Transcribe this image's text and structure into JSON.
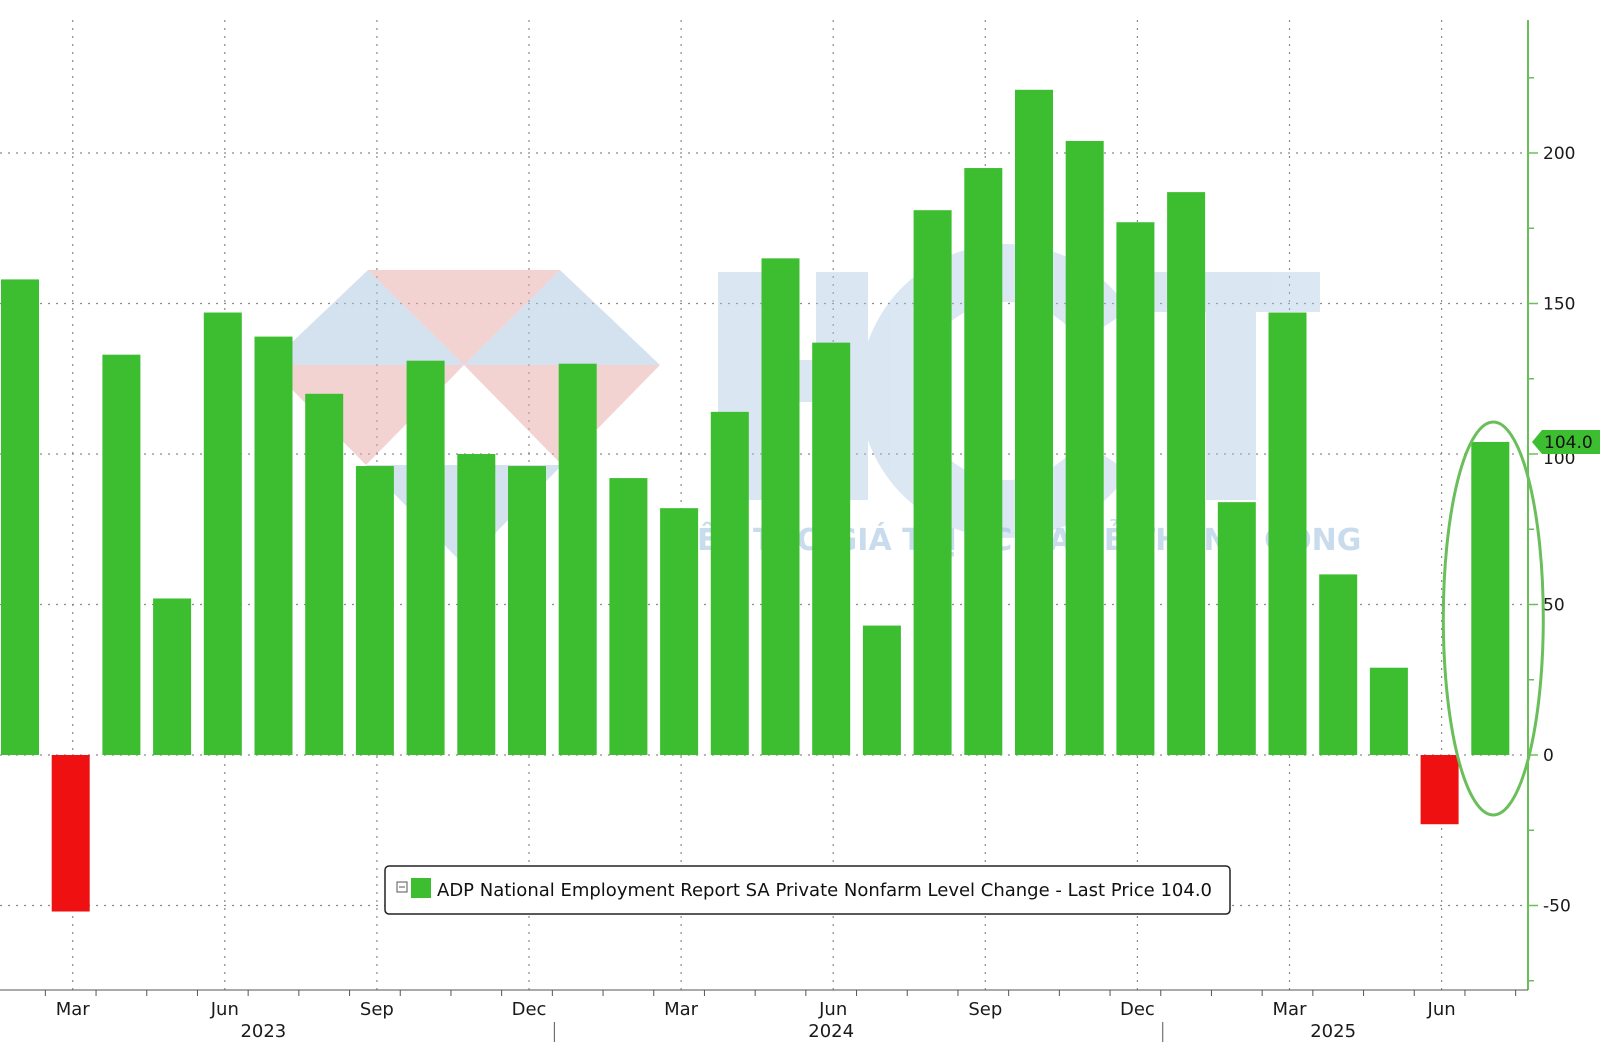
{
  "chart_data": {
    "type": "bar",
    "title": "",
    "xlabel": "",
    "ylabel": "",
    "ylim": [
      -80,
      245
    ],
    "y_ticks": [
      -50,
      0,
      50,
      100,
      150,
      200
    ],
    "series": [
      {
        "name": "ADP National Employment Report SA Private Nonfarm Level Change - Last Price 104.0",
        "periods": [
          "2023-02",
          "2023-03",
          "2023-04",
          "2023-05",
          "2023-06",
          "2023-07",
          "2023-08",
          "2023-09",
          "2023-10",
          "2023-11",
          "2023-12",
          "2024-01",
          "2024-02",
          "2024-03",
          "2024-04",
          "2024-05",
          "2024-06",
          "2024-07",
          "2024-08",
          "2024-09",
          "2024-10",
          "2024-11",
          "2024-12",
          "2025-01",
          "2025-02",
          "2025-03",
          "2025-04",
          "2025-05",
          "2025-06",
          "2025-07"
        ],
        "values": [
          158,
          -52,
          133,
          52,
          147,
          139,
          120,
          96,
          131,
          100,
          96,
          130,
          92,
          82,
          114,
          165,
          137,
          43,
          181,
          195,
          221,
          204,
          177,
          187,
          84,
          147,
          60,
          29,
          -23,
          104
        ]
      }
    ],
    "x_month_labels": [
      {
        "label": "Mar",
        "index": 1
      },
      {
        "label": "Jun",
        "index": 4
      },
      {
        "label": "Sep",
        "index": 7
      },
      {
        "label": "Dec",
        "index": 10
      },
      {
        "label": "Mar",
        "index": 13
      },
      {
        "label": "Jun",
        "index": 16
      },
      {
        "label": "Sep",
        "index": 19
      },
      {
        "label": "Dec",
        "index": 22
      },
      {
        "label": "Mar",
        "index": 25
      },
      {
        "label": "Jun",
        "index": 28
      }
    ],
    "x_year_labels": [
      {
        "label": "2023",
        "center_index": 4.8
      },
      {
        "label": "2024",
        "center_index": 16
      },
      {
        "label": "2025",
        "center_index": 25.9
      }
    ],
    "year_dividers": [
      10.5,
      22.5
    ],
    "last_price_label": "104.0",
    "legend_text": "ADP National Employment Report SA Private Nonfarm Level Change - Last Price 104.0",
    "legend_placement": "bottom-center",
    "highlighted_index": 29,
    "colors": {
      "positive": "#3dbd30",
      "negative": "#ef1111",
      "axis": "#6abf5a",
      "highlight": "#6abf5a",
      "grid": "#8a8a8a"
    }
  },
  "watermark": {
    "logo_text": "HCT",
    "tagline": "KIẾN TẠO GIÁ TRỊ - CHIA SẺ THÀNH CÔNG"
  }
}
